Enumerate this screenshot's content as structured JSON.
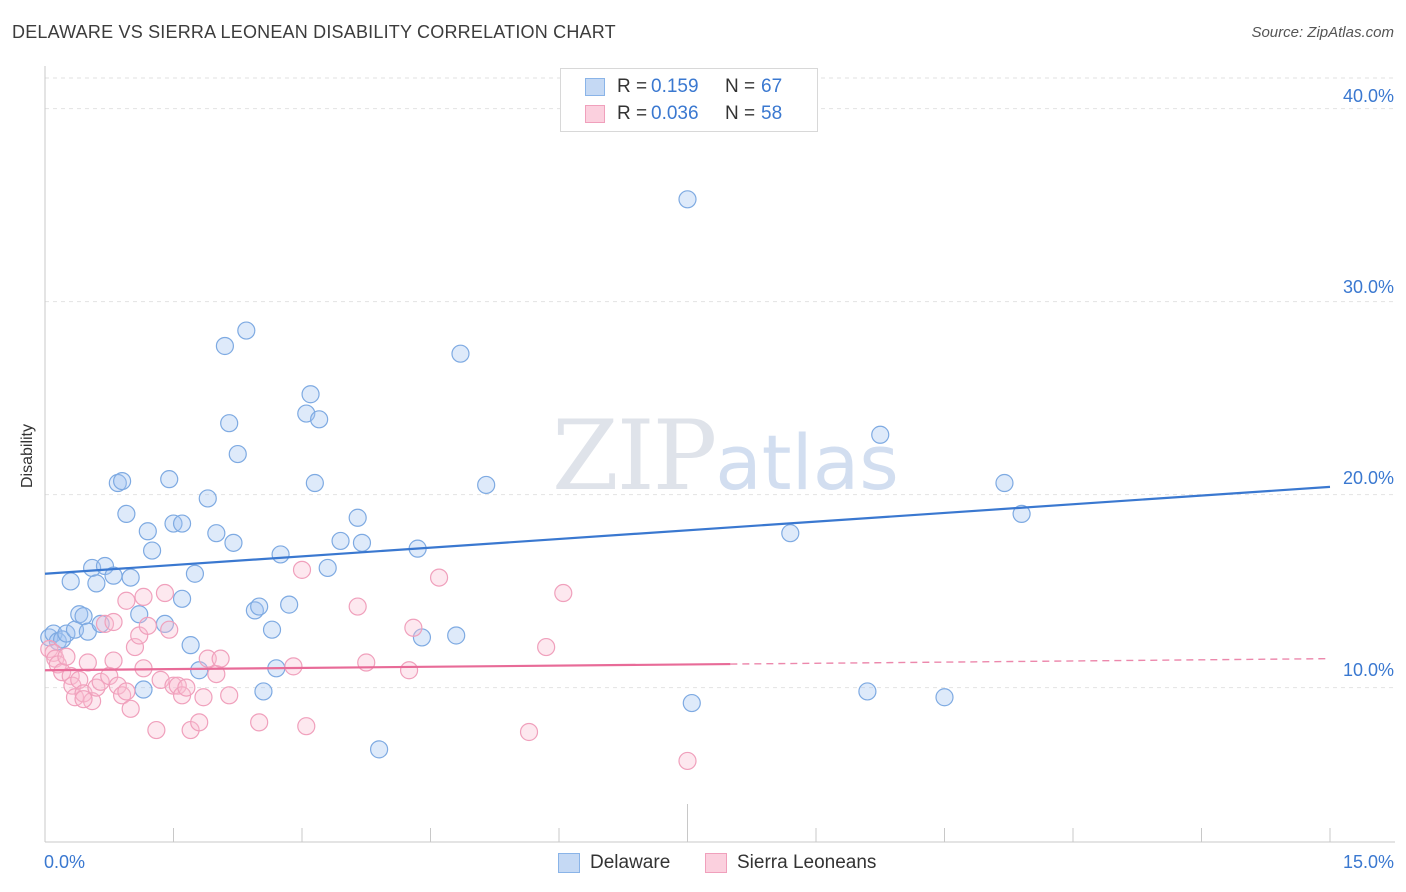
{
  "header": {
    "title": "DELAWARE VS SIERRA LEONEAN DISABILITY CORRELATION CHART",
    "source": "Source: ZipAtlas.com"
  },
  "watermark": {
    "zip": "ZIP",
    "atlas": "atlas"
  },
  "legend": {
    "rows": [
      {
        "r_label": "R =",
        "r_value": "0.159",
        "n_label": "N =",
        "n_value": "67",
        "color": "#8ab4e8",
        "fill": "#c5d9f4"
      },
      {
        "r_label": "R =",
        "r_value": "0.036",
        "n_label": "N =",
        "n_value": "58",
        "color": "#f0a0bc",
        "fill": "#fbd0de"
      }
    ]
  },
  "bottom_legend": {
    "items": [
      {
        "label": "Delaware",
        "color": "#8ab4e8",
        "fill": "#c5d9f4"
      },
      {
        "label": "Sierra Leoneans",
        "color": "#f0a0bc",
        "fill": "#fbd0de"
      }
    ]
  },
  "chart_data": {
    "type": "scatter",
    "title": "DELAWARE VS SIERRA LEONEAN DISABILITY CORRELATION CHART",
    "xlabel": "",
    "ylabel": "Disability",
    "xlim": [
      0,
      15
    ],
    "ylim": [
      2,
      42
    ],
    "x_tick_labels": [
      "0.0%",
      "15.0%"
    ],
    "y_ticks": [
      10,
      20,
      30,
      40
    ],
    "y_tick_labels": [
      "10.0%",
      "20.0%",
      "30.0%",
      "40.0%"
    ],
    "grid": "horizontal dashed",
    "series": [
      {
        "name": "Delaware",
        "color": "#3a78d0",
        "stroke": "#7eaae2",
        "fill": "rgba(160,196,240,0.35)",
        "trend": {
          "x0": 0,
          "y0": 15.9,
          "x1": 15,
          "y1": 20.4,
          "solid_until": 15
        },
        "points": [
          [
            0.05,
            12.6
          ],
          [
            0.1,
            12.8
          ],
          [
            0.15,
            12.4
          ],
          [
            0.2,
            12.5
          ],
          [
            0.25,
            12.8
          ],
          [
            0.3,
            15.5
          ],
          [
            0.35,
            13.0
          ],
          [
            0.4,
            13.8
          ],
          [
            0.45,
            13.7
          ],
          [
            0.5,
            12.9
          ],
          [
            0.55,
            16.2
          ],
          [
            0.6,
            15.4
          ],
          [
            0.65,
            13.3
          ],
          [
            0.7,
            16.3
          ],
          [
            0.8,
            15.8
          ],
          [
            0.85,
            20.6
          ],
          [
            0.9,
            20.7
          ],
          [
            0.95,
            19.0
          ],
          [
            1.0,
            15.7
          ],
          [
            1.1,
            13.8
          ],
          [
            1.15,
            9.9
          ],
          [
            1.2,
            18.1
          ],
          [
            1.25,
            17.1
          ],
          [
            1.4,
            13.3
          ],
          [
            1.45,
            20.8
          ],
          [
            1.5,
            18.5
          ],
          [
            1.6,
            14.6
          ],
          [
            1.6,
            18.5
          ],
          [
            1.7,
            12.2
          ],
          [
            1.75,
            15.9
          ],
          [
            1.8,
            10.9
          ],
          [
            1.9,
            19.8
          ],
          [
            2.0,
            18.0
          ],
          [
            2.1,
            27.7
          ],
          [
            2.15,
            23.7
          ],
          [
            2.2,
            17.5
          ],
          [
            2.25,
            22.1
          ],
          [
            2.35,
            28.5
          ],
          [
            2.45,
            14.0
          ],
          [
            2.5,
            14.2
          ],
          [
            2.55,
            9.8
          ],
          [
            2.65,
            13.0
          ],
          [
            2.7,
            11.0
          ],
          [
            2.75,
            16.9
          ],
          [
            2.85,
            14.3
          ],
          [
            3.05,
            24.2
          ],
          [
            3.1,
            25.2
          ],
          [
            3.2,
            23.9
          ],
          [
            3.3,
            16.2
          ],
          [
            3.15,
            20.6
          ],
          [
            3.45,
            17.6
          ],
          [
            3.65,
            18.8
          ],
          [
            3.7,
            17.5
          ],
          [
            3.9,
            6.8
          ],
          [
            4.35,
            17.2
          ],
          [
            4.4,
            12.6
          ],
          [
            4.8,
            12.7
          ],
          [
            4.85,
            27.3
          ],
          [
            5.15,
            20.5
          ],
          [
            7.5,
            35.3
          ],
          [
            7.55,
            9.2
          ],
          [
            8.7,
            18.0
          ],
          [
            9.6,
            9.8
          ],
          [
            9.75,
            23.1
          ],
          [
            10.5,
            9.5
          ],
          [
            11.2,
            20.6
          ],
          [
            11.4,
            19.0
          ]
        ]
      },
      {
        "name": "Sierra Leoneans",
        "color": "#e86b98",
        "stroke": "#f0a0bc",
        "fill": "rgba(248,190,210,0.35)",
        "trend": {
          "x0": 0,
          "y0": 10.9,
          "x1": 15,
          "y1": 11.5,
          "solid_until": 8.0
        },
        "points": [
          [
            0.05,
            12.0
          ],
          [
            0.1,
            11.8
          ],
          [
            0.12,
            11.5
          ],
          [
            0.15,
            11.2
          ],
          [
            0.2,
            10.8
          ],
          [
            0.25,
            11.6
          ],
          [
            0.3,
            10.6
          ],
          [
            0.32,
            10.1
          ],
          [
            0.35,
            9.5
          ],
          [
            0.4,
            10.4
          ],
          [
            0.45,
            9.7
          ],
          [
            0.5,
            11.3
          ],
          [
            0.55,
            9.3
          ],
          [
            0.6,
            10.0
          ],
          [
            0.65,
            10.3
          ],
          [
            0.7,
            13.3
          ],
          [
            0.75,
            10.6
          ],
          [
            0.8,
            11.4
          ],
          [
            0.85,
            10.1
          ],
          [
            0.9,
            9.6
          ],
          [
            0.95,
            9.8
          ],
          [
            1.0,
            8.9
          ],
          [
            1.05,
            12.1
          ],
          [
            1.1,
            12.7
          ],
          [
            1.15,
            11.0
          ],
          [
            1.2,
            13.2
          ],
          [
            1.3,
            7.8
          ],
          [
            1.35,
            10.4
          ],
          [
            1.4,
            14.9
          ],
          [
            1.45,
            13.0
          ],
          [
            1.5,
            10.1
          ],
          [
            1.55,
            10.1
          ],
          [
            1.6,
            9.6
          ],
          [
            1.65,
            10.0
          ],
          [
            1.7,
            7.8
          ],
          [
            1.8,
            8.2
          ],
          [
            1.85,
            9.5
          ],
          [
            1.9,
            11.5
          ],
          [
            2.0,
            10.7
          ],
          [
            2.05,
            11.5
          ],
          [
            2.15,
            9.6
          ],
          [
            2.5,
            8.2
          ],
          [
            2.9,
            11.1
          ],
          [
            3.0,
            16.1
          ],
          [
            3.05,
            8.0
          ],
          [
            3.65,
            14.2
          ],
          [
            3.75,
            11.3
          ],
          [
            4.25,
            10.9
          ],
          [
            4.3,
            13.1
          ],
          [
            4.6,
            15.7
          ],
          [
            5.65,
            7.7
          ],
          [
            5.85,
            12.1
          ],
          [
            6.05,
            14.9
          ],
          [
            7.5,
            6.2
          ],
          [
            0.95,
            14.5
          ],
          [
            0.8,
            13.4
          ],
          [
            1.15,
            14.7
          ],
          [
            0.45,
            9.4
          ]
        ]
      }
    ]
  }
}
